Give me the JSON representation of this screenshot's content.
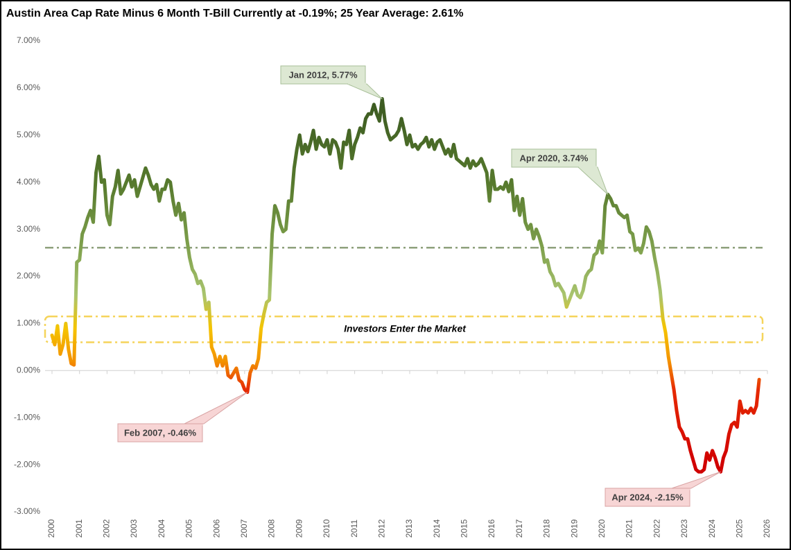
{
  "chart_data": {
    "type": "line",
    "title": "Austin Area Cap Rate Minus 6 Month T-Bill Currently at -0.19%; 25 Year Average: 2.61%",
    "xlim": [
      2000,
      2026
    ],
    "xticks": [
      2000,
      2001,
      2002,
      2003,
      2004,
      2005,
      2006,
      2007,
      2008,
      2009,
      2010,
      2011,
      2012,
      2013,
      2014,
      2015,
      2016,
      2017,
      2018,
      2019,
      2020,
      2021,
      2022,
      2023,
      2024,
      2025,
      2026
    ],
    "ylim": [
      -3,
      7
    ],
    "yticks": [
      {
        "value": -3,
        "label": "-3.00%"
      },
      {
        "value": -2,
        "label": "-2.00%"
      },
      {
        "value": -1,
        "label": "-1.00%"
      },
      {
        "value": 0,
        "label": "0.00%"
      },
      {
        "value": 1,
        "label": "1.00%"
      },
      {
        "value": 2,
        "label": "2.00%"
      },
      {
        "value": 3,
        "label": "3.00%"
      },
      {
        "value": 4,
        "label": "4.00%"
      },
      {
        "value": 5,
        "label": "5.00%"
      },
      {
        "value": 6,
        "label": "6.00%"
      },
      {
        "value": 7,
        "label": "7.00%"
      }
    ],
    "line_color_stops": [
      {
        "value": -2,
        "color": "#d00000"
      },
      {
        "value": -0.4,
        "color": "#e62a00"
      },
      {
        "value": 0.2,
        "color": "#f39200"
      },
      {
        "value": 0.9,
        "color": "#f5c400"
      },
      {
        "value": 1.6,
        "color": "#a9c46e"
      },
      {
        "value": 2.6,
        "color": "#7fa14d"
      },
      {
        "value": 4,
        "color": "#56792d"
      },
      {
        "value": 5.6,
        "color": "#3d5c22"
      }
    ],
    "average": 2.61,
    "average_color": "#8c9f7a",
    "band": [
      0.6,
      1.15
    ],
    "band_color": "#f5d45a",
    "band_label": "Investors Enter the Market",
    "annotations": [
      {
        "text": "Jan 2012, 5.77%",
        "x": 2012.0,
        "y": 5.77
      },
      {
        "text": "Apr 2020, 3.74%",
        "x": 2020.2,
        "y": 3.74
      },
      {
        "text": "Feb 2007, -0.46%",
        "x": 2007.1,
        "y": -0.46
      },
      {
        "text": "Apr 2024, -2.15%",
        "x": 2024.3,
        "y": -2.15
      }
    ],
    "x": [
      2000.0,
      2000.1,
      2000.2,
      2000.3,
      2000.4,
      2000.5,
      2000.6,
      2000.7,
      2000.8,
      2000.9,
      2001.0,
      2001.1,
      2001.2,
      2001.3,
      2001.4,
      2001.5,
      2001.6,
      2001.7,
      2001.8,
      2001.9,
      2002.0,
      2002.1,
      2002.2,
      2002.3,
      2002.4,
      2002.5,
      2002.6,
      2002.7,
      2002.8,
      2002.9,
      2003.0,
      2003.1,
      2003.2,
      2003.3,
      2003.4,
      2003.5,
      2003.6,
      2003.7,
      2003.8,
      2003.9,
      2004.0,
      2004.1,
      2004.2,
      2004.3,
      2004.4,
      2004.5,
      2004.6,
      2004.7,
      2004.8,
      2004.9,
      2005.0,
      2005.1,
      2005.2,
      2005.3,
      2005.4,
      2005.5,
      2005.6,
      2005.7,
      2005.8,
      2005.9,
      2006.0,
      2006.1,
      2006.2,
      2006.3,
      2006.4,
      2006.5,
      2006.6,
      2006.7,
      2006.8,
      2006.9,
      2007.0,
      2007.1,
      2007.2,
      2007.3,
      2007.4,
      2007.5,
      2007.6,
      2007.7,
      2007.8,
      2007.9,
      2008.0,
      2008.1,
      2008.2,
      2008.3,
      2008.4,
      2008.5,
      2008.6,
      2008.7,
      2008.8,
      2008.9,
      2009.0,
      2009.1,
      2009.2,
      2009.3,
      2009.4,
      2009.5,
      2009.6,
      2009.7,
      2009.8,
      2009.9,
      2010.0,
      2010.1,
      2010.2,
      2010.3,
      2010.4,
      2010.5,
      2010.6,
      2010.7,
      2010.8,
      2010.9,
      2011.0,
      2011.1,
      2011.2,
      2011.3,
      2011.4,
      2011.5,
      2011.6,
      2011.7,
      2011.8,
      2011.9,
      2012.0,
      2012.1,
      2012.2,
      2012.3,
      2012.4,
      2012.5,
      2012.6,
      2012.7,
      2012.8,
      2012.9,
      2013.0,
      2013.1,
      2013.2,
      2013.3,
      2013.4,
      2013.5,
      2013.6,
      2013.7,
      2013.8,
      2013.9,
      2014.0,
      2014.1,
      2014.2,
      2014.3,
      2014.4,
      2014.5,
      2014.6,
      2014.7,
      2014.8,
      2014.9,
      2015.0,
      2015.1,
      2015.2,
      2015.3,
      2015.4,
      2015.5,
      2015.6,
      2015.7,
      2015.8,
      2015.9,
      2016.0,
      2016.1,
      2016.2,
      2016.3,
      2016.4,
      2016.5,
      2016.6,
      2016.7,
      2016.8,
      2016.9,
      2017.0,
      2017.1,
      2017.2,
      2017.3,
      2017.4,
      2017.5,
      2017.6,
      2017.7,
      2017.8,
      2017.9,
      2018.0,
      2018.1,
      2018.2,
      2018.3,
      2018.4,
      2018.5,
      2018.6,
      2018.7,
      2018.8,
      2018.9,
      2019.0,
      2019.1,
      2019.2,
      2019.3,
      2019.4,
      2019.5,
      2019.6,
      2019.7,
      2019.8,
      2019.9,
      2020.0,
      2020.1,
      2020.2,
      2020.3,
      2020.4,
      2020.5,
      2020.6,
      2020.7,
      2020.8,
      2020.9,
      2021.0,
      2021.1,
      2021.2,
      2021.3,
      2021.4,
      2021.5,
      2021.6,
      2021.7,
      2021.8,
      2021.9,
      2022.0,
      2022.1,
      2022.2,
      2022.3,
      2022.4,
      2022.5,
      2022.6,
      2022.7,
      2022.8,
      2022.9,
      2023.0,
      2023.1,
      2023.2,
      2023.3,
      2023.4,
      2023.5,
      2023.6,
      2023.7,
      2023.8,
      2023.9,
      2024.0,
      2024.1,
      2024.2,
      2024.3,
      2024.4,
      2024.5,
      2024.6,
      2024.7,
      2024.8,
      2024.9,
      2025.0,
      2025.1,
      2025.2,
      2025.3,
      2025.4,
      2025.5,
      2025.6,
      2025.7
    ],
    "series": [
      {
        "name": "Cap Rate Minus 6 Month T-Bill",
        "values": [
          0.75,
          0.55,
          0.95,
          0.35,
          0.55,
          1.0,
          0.45,
          0.15,
          0.12,
          2.3,
          2.35,
          2.9,
          3.05,
          3.25,
          3.4,
          3.15,
          4.2,
          4.55,
          4.0,
          4.05,
          3.3,
          3.1,
          3.7,
          3.9,
          4.25,
          3.75,
          3.85,
          4.0,
          4.15,
          3.9,
          4.05,
          3.7,
          3.9,
          4.1,
          4.3,
          4.15,
          3.95,
          3.85,
          3.95,
          3.6,
          3.85,
          3.85,
          4.05,
          4.0,
          3.6,
          3.3,
          3.55,
          3.2,
          3.35,
          2.8,
          2.4,
          2.15,
          2.05,
          1.85,
          1.9,
          1.75,
          1.3,
          1.45,
          0.5,
          0.35,
          0.1,
          0.3,
          0.1,
          0.3,
          -0.1,
          -0.15,
          -0.05,
          0.05,
          -0.2,
          -0.25,
          -0.4,
          -0.46,
          -0.05,
          0.1,
          0.05,
          0.25,
          0.9,
          1.2,
          1.45,
          1.5,
          2.9,
          3.5,
          3.35,
          3.1,
          2.95,
          3.0,
          3.6,
          3.6,
          4.3,
          4.7,
          5.0,
          4.6,
          4.8,
          4.65,
          4.85,
          5.1,
          4.7,
          4.95,
          4.8,
          4.75,
          4.9,
          4.6,
          4.9,
          4.85,
          4.7,
          4.3,
          4.85,
          4.8,
          5.1,
          4.5,
          4.8,
          4.95,
          5.15,
          5.05,
          5.35,
          5.45,
          5.45,
          5.65,
          5.45,
          5.3,
          5.77,
          5.3,
          5.05,
          4.9,
          4.95,
          5.0,
          5.1,
          5.35,
          5.1,
          4.8,
          5.0,
          4.75,
          4.8,
          4.7,
          4.8,
          4.85,
          4.95,
          4.75,
          4.9,
          4.7,
          4.85,
          4.9,
          4.75,
          4.6,
          4.7,
          4.55,
          4.8,
          4.5,
          4.45,
          4.4,
          4.35,
          4.5,
          4.3,
          4.45,
          4.35,
          4.4,
          4.5,
          4.35,
          4.2,
          3.6,
          4.25,
          3.85,
          3.85,
          3.9,
          3.85,
          4.0,
          3.8,
          4.05,
          3.4,
          3.7,
          3.3,
          3.65,
          3.15,
          3.0,
          3.1,
          2.8,
          3.0,
          2.85,
          2.65,
          2.3,
          2.35,
          2.1,
          2.0,
          1.8,
          1.85,
          1.75,
          1.65,
          1.35,
          1.5,
          1.65,
          1.8,
          1.6,
          1.55,
          1.7,
          2.0,
          2.1,
          2.15,
          2.45,
          2.5,
          2.75,
          2.5,
          3.5,
          3.74,
          3.65,
          3.5,
          3.5,
          3.35,
          3.3,
          3.25,
          3.3,
          2.95,
          2.9,
          2.55,
          2.6,
          2.5,
          2.7,
          3.05,
          2.95,
          2.75,
          2.4,
          2.1,
          1.7,
          1.1,
          0.8,
          0.3,
          -0.05,
          -0.4,
          -0.85,
          -1.2,
          -1.3,
          -1.45,
          -1.45,
          -1.7,
          -1.9,
          -2.1,
          -2.15,
          -2.15,
          -2.1,
          -1.75,
          -1.9,
          -1.7,
          -1.85,
          -2.05,
          -2.15,
          -1.85,
          -1.7,
          -1.35,
          -1.15,
          -1.1,
          -1.2,
          -0.65,
          -0.9,
          -0.85,
          -0.9,
          -0.8,
          -0.9,
          -0.75,
          -0.19
        ]
      }
    ]
  }
}
